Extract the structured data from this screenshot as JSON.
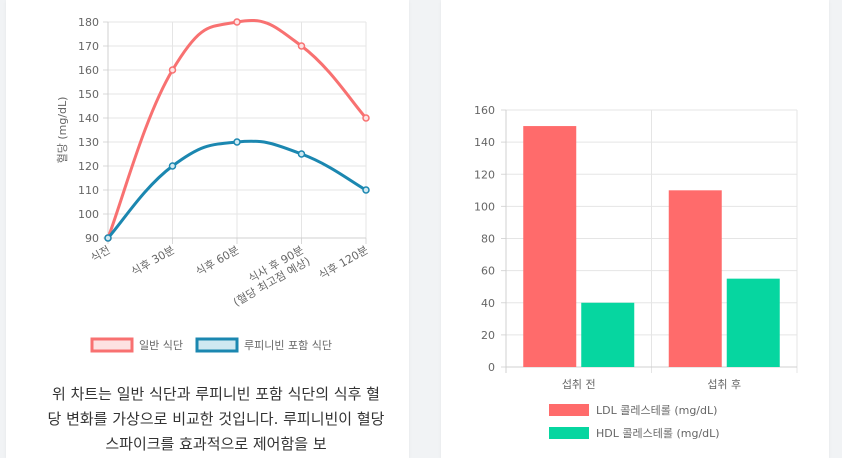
{
  "chart_data": [
    {
      "type": "line",
      "categories": [
        "식전",
        "식후 30분",
        "식후 60분",
        [
          "식사 후 90분",
          "(혈당 최고점 예상)"
        ],
        "식후 120분"
      ],
      "series": [
        {
          "name": "일반 식단",
          "values": [
            90,
            160,
            180,
            170,
            140
          ],
          "color": "#f87171",
          "fill": "#fde2e2"
        },
        {
          "name": "루피니빈 포함 식단",
          "values": [
            90,
            120,
            130,
            125,
            110
          ],
          "color": "#1b87b0",
          "fill": "#cfe8f1"
        }
      ],
      "ylabel": "혈당 (mg/dL)",
      "ylim": [
        90,
        180
      ],
      "yticks": [
        90,
        100,
        110,
        120,
        130,
        140,
        150,
        160,
        170,
        180
      ],
      "grid": true,
      "legend": "bottom"
    },
    {
      "type": "bar",
      "categories": [
        "섭취 전",
        "섭취 후"
      ],
      "series": [
        {
          "name": "LDL 콜레스테롤 (mg/dL)",
          "values": [
            150,
            110
          ],
          "color": "#ff6b6b"
        },
        {
          "name": "HDL 콜레스테롤 (mg/dL)",
          "values": [
            40,
            55
          ],
          "color": "#06d6a0"
        }
      ],
      "ylim": [
        0,
        160
      ],
      "yticks": [
        0,
        20,
        40,
        60,
        80,
        100,
        120,
        140,
        160
      ],
      "grid": true,
      "legend": "bottom"
    }
  ],
  "description": "위 차트는 일반 식단과 루피니빈 포함 식단의 식후 혈당 변화를 가상으로 비교한 것입니다. 루피니빈이 혈당 스파이크를 효과적으로 제어함을 보"
}
